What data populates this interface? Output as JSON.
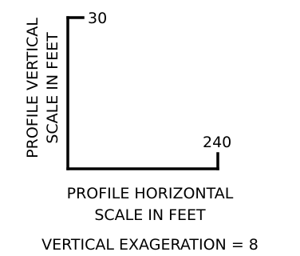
{
  "profile_scale": {
    "vertical_max": "30",
    "horizontal_max": "240",
    "vertical_label": [
      "PROFILE VERTICAL",
      "SCALE IN FEET"
    ],
    "horizontal_label": [
      "PROFILE HORIZONTAL",
      "SCALE IN FEET"
    ],
    "exaggeration_label": "VERTICAL EXAGERATION = 8"
  }
}
